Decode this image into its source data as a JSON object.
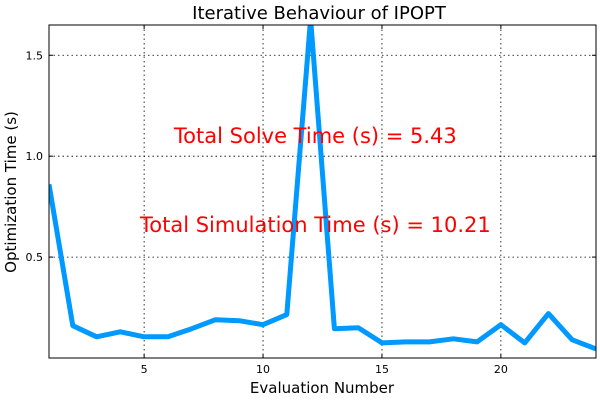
{
  "chart_data": {
    "type": "line",
    "title": "Iterative Behaviour of IPOPT",
    "xlabel": "Evaluation Number",
    "ylabel": "Optimization Time (s)",
    "xlim": [
      1,
      24
    ],
    "ylim": [
      0.0,
      1.65
    ],
    "xticks": [
      5,
      10,
      15,
      20
    ],
    "yticks": [
      0.5,
      1.0,
      1.5
    ],
    "xtick_labels": [
      "5",
      "10",
      "15",
      "20"
    ],
    "ytick_labels": [
      "0.5",
      "1.0",
      "1.5"
    ],
    "grid": true,
    "series": [
      {
        "color": "#0099ff",
        "x": [
          1,
          2,
          3,
          4,
          5,
          6,
          7,
          8,
          9,
          10,
          11,
          12,
          13,
          14,
          15,
          16,
          17,
          18,
          19,
          20,
          21,
          22,
          23,
          24
        ],
        "y": [
          0.86,
          0.16,
          0.105,
          0.13,
          0.105,
          0.105,
          0.145,
          0.19,
          0.185,
          0.165,
          0.215,
          1.68,
          0.145,
          0.15,
          0.075,
          0.08,
          0.08,
          0.095,
          0.08,
          0.165,
          0.075,
          0.22,
          0.09,
          0.045
        ]
      }
    ],
    "annotations": [
      {
        "text": "Total Solve Time (s) = 5.43",
        "x": 12.2,
        "y": 1.1
      },
      {
        "text": "Total Simulation Time (s) = 10.21",
        "x": 12.2,
        "y": 0.66
      }
    ]
  }
}
